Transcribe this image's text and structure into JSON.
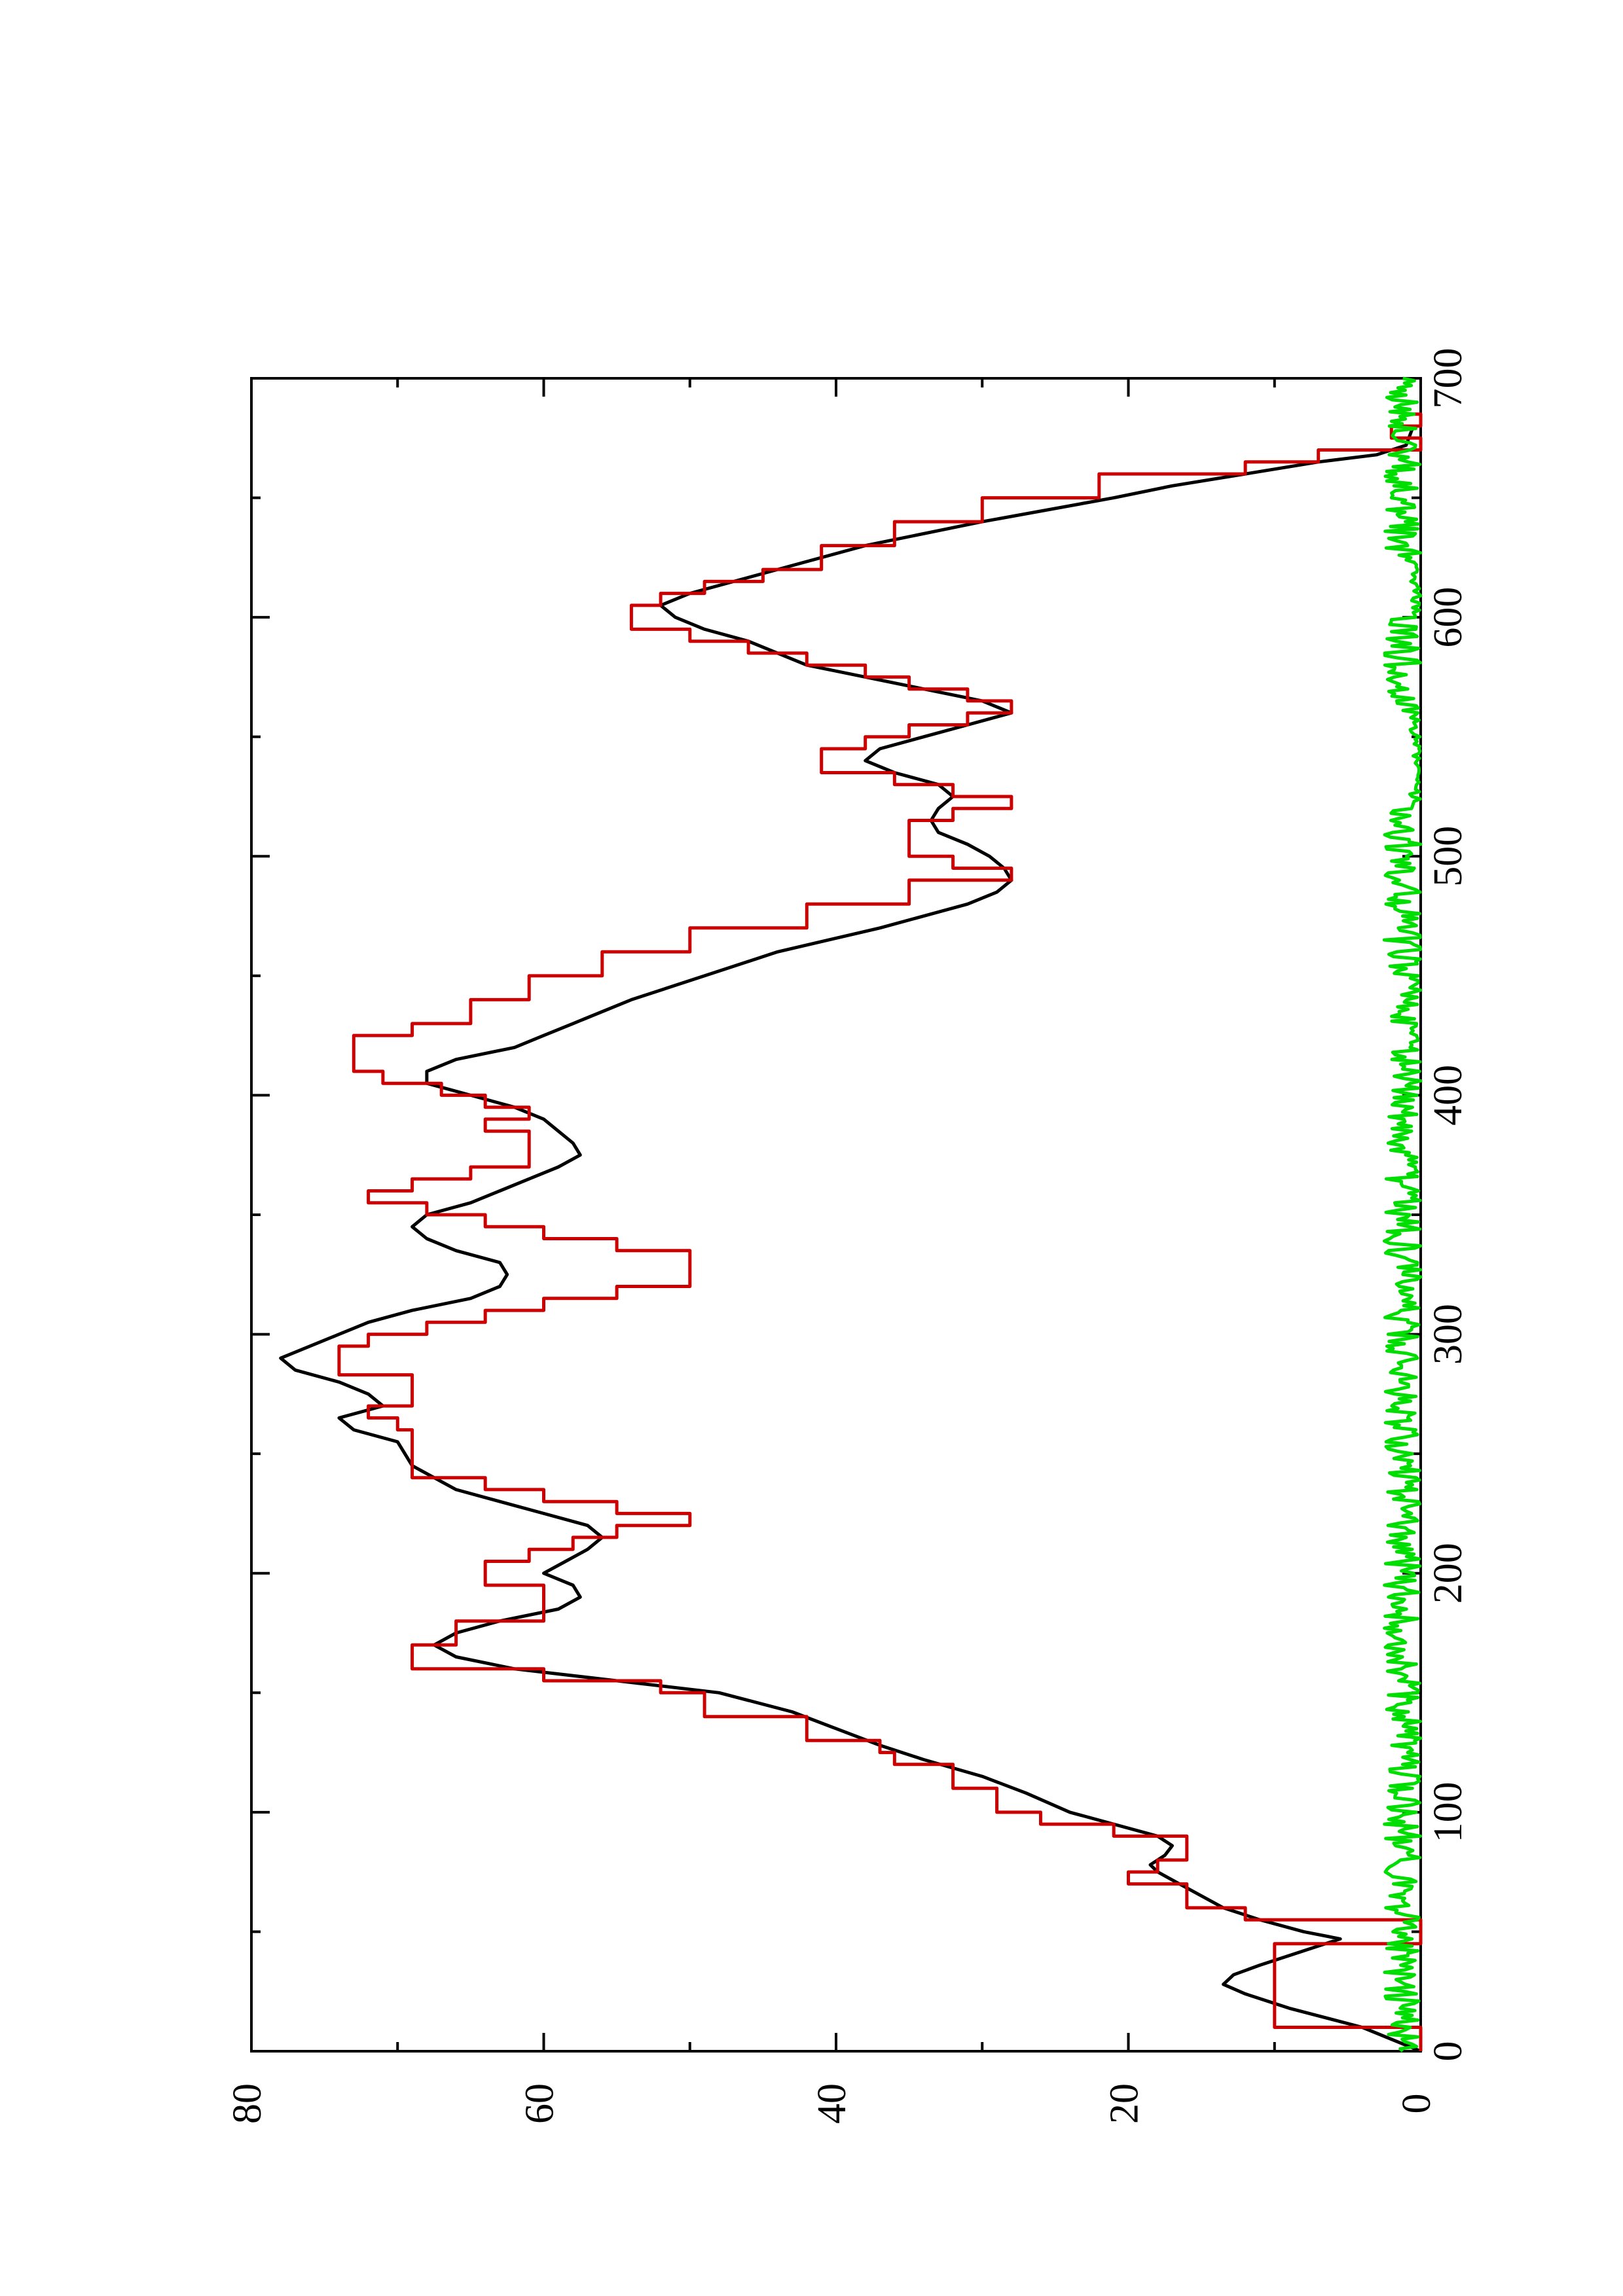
{
  "chart_data": {
    "type": "line",
    "orientation": "rotated-90-ccw",
    "title": "",
    "xlabel": "",
    "ylabel": "",
    "xlim": [
      0,
      700
    ],
    "ylim": [
      0,
      80
    ],
    "x_major_ticks": [
      0,
      100,
      200,
      300,
      400,
      500,
      600,
      700
    ],
    "x_minor_ticks": [
      50,
      150,
      250,
      350,
      450,
      550,
      650
    ],
    "y_major_ticks": [
      0,
      20,
      40,
      60,
      80
    ],
    "y_minor_ticks": [
      10,
      30,
      50,
      70
    ],
    "x_tick_labels": [
      "0",
      "100",
      "200",
      "300",
      "400",
      "500",
      "600",
      "700"
    ],
    "y_tick_labels": [
      "0",
      "20",
      "40",
      "60",
      "80"
    ],
    "grid": false,
    "legend": "none",
    "series": [
      {
        "color": "#000000",
        "style": "line",
        "points": [
          [
            0,
            0
          ],
          [
            10,
            4
          ],
          [
            18,
            9
          ],
          [
            24,
            12
          ],
          [
            28,
            13.5
          ],
          [
            32,
            12.8
          ],
          [
            36,
            11
          ],
          [
            40,
            9
          ],
          [
            44,
            7
          ],
          [
            47,
            5.5
          ],
          [
            50,
            8
          ],
          [
            55,
            11
          ],
          [
            60,
            13.5
          ],
          [
            65,
            15
          ],
          [
            70,
            16.5
          ],
          [
            75,
            18
          ],
          [
            78,
            18.5
          ],
          [
            82,
            17.5
          ],
          [
            86,
            17
          ],
          [
            90,
            18
          ],
          [
            95,
            21
          ],
          [
            100,
            24
          ],
          [
            108,
            27
          ],
          [
            115,
            30
          ],
          [
            122,
            34
          ],
          [
            128,
            37
          ],
          [
            135,
            40
          ],
          [
            142,
            43
          ],
          [
            150,
            48
          ],
          [
            155,
            55
          ],
          [
            160,
            62
          ],
          [
            165,
            66
          ],
          [
            170,
            67.5
          ],
          [
            175,
            66
          ],
          [
            180,
            63
          ],
          [
            185,
            59
          ],
          [
            190,
            57.5
          ],
          [
            195,
            58
          ],
          [
            200,
            60
          ],
          [
            205,
            58.5
          ],
          [
            210,
            57
          ],
          [
            215,
            56
          ],
          [
            220,
            57
          ],
          [
            225,
            60
          ],
          [
            235,
            66
          ],
          [
            245,
            69
          ],
          [
            255,
            70
          ],
          [
            260,
            73
          ],
          [
            265,
            74
          ],
          [
            270,
            71
          ],
          [
            275,
            72
          ],
          [
            280,
            74
          ],
          [
            285,
            77
          ],
          [
            290,
            78
          ],
          [
            295,
            76
          ],
          [
            300,
            74
          ],
          [
            305,
            72
          ],
          [
            310,
            69
          ],
          [
            315,
            65
          ],
          [
            320,
            63
          ],
          [
            325,
            62.5
          ],
          [
            330,
            63
          ],
          [
            335,
            66
          ],
          [
            340,
            68
          ],
          [
            345,
            69
          ],
          [
            350,
            68
          ],
          [
            355,
            65
          ],
          [
            360,
            63
          ],
          [
            365,
            61
          ],
          [
            370,
            59
          ],
          [
            375,
            57.5
          ],
          [
            380,
            58
          ],
          [
            385,
            59
          ],
          [
            390,
            60
          ],
          [
            395,
            62
          ],
          [
            400,
            65
          ],
          [
            405,
            68
          ],
          [
            410,
            68
          ],
          [
            415,
            66
          ],
          [
            420,
            62
          ],
          [
            425,
            60
          ],
          [
            430,
            58
          ],
          [
            440,
            54
          ],
          [
            450,
            49
          ],
          [
            460,
            44
          ],
          [
            470,
            37
          ],
          [
            480,
            31
          ],
          [
            485,
            29
          ],
          [
            490,
            28
          ],
          [
            495,
            28.5
          ],
          [
            500,
            29.5
          ],
          [
            505,
            31
          ],
          [
            510,
            33
          ],
          [
            515,
            33.5
          ],
          [
            520,
            33
          ],
          [
            525,
            32
          ],
          [
            530,
            33
          ],
          [
            535,
            36
          ],
          [
            540,
            38
          ],
          [
            545,
            37
          ],
          [
            550,
            34
          ],
          [
            555,
            31
          ],
          [
            560,
            28
          ],
          [
            565,
            30
          ],
          [
            570,
            34
          ],
          [
            575,
            38
          ],
          [
            580,
            42
          ],
          [
            585,
            44
          ],
          [
            590,
            46
          ],
          [
            595,
            49
          ],
          [
            600,
            51
          ],
          [
            605,
            52
          ],
          [
            610,
            50
          ],
          [
            615,
            47
          ],
          [
            620,
            44
          ],
          [
            630,
            38
          ],
          [
            640,
            30
          ],
          [
            650,
            21
          ],
          [
            655,
            17
          ],
          [
            660,
            12
          ],
          [
            665,
            7
          ],
          [
            668,
            3
          ],
          [
            672,
            1
          ],
          [
            680,
            0.5
          ]
        ]
      },
      {
        "color": "#cc0000",
        "style": "step",
        "points": [
          [
            0,
            0
          ],
          [
            10,
            10
          ],
          [
            40,
            10
          ],
          [
            45,
            0
          ],
          [
            55,
            12
          ],
          [
            60,
            16
          ],
          [
            70,
            20
          ],
          [
            75,
            18
          ],
          [
            80,
            16
          ],
          [
            85,
            16
          ],
          [
            90,
            21
          ],
          [
            95,
            26
          ],
          [
            100,
            29
          ],
          [
            110,
            32
          ],
          [
            120,
            36
          ],
          [
            125,
            37
          ],
          [
            130,
            42
          ],
          [
            140,
            49
          ],
          [
            150,
            52
          ],
          [
            155,
            60
          ],
          [
            160,
            69
          ],
          [
            165,
            69
          ],
          [
            170,
            66
          ],
          [
            180,
            60
          ],
          [
            190,
            60
          ],
          [
            195,
            64
          ],
          [
            200,
            64
          ],
          [
            205,
            61
          ],
          [
            210,
            58
          ],
          [
            215,
            55
          ],
          [
            220,
            50
          ],
          [
            225,
            55
          ],
          [
            230,
            60
          ],
          [
            235,
            64
          ],
          [
            240,
            69
          ],
          [
            250,
            69
          ],
          [
            260,
            70
          ],
          [
            265,
            72
          ],
          [
            270,
            69
          ],
          [
            280,
            69
          ],
          [
            283,
            74
          ],
          [
            290,
            74
          ],
          [
            295,
            72
          ],
          [
            300,
            68
          ],
          [
            305,
            64
          ],
          [
            310,
            60
          ],
          [
            315,
            55
          ],
          [
            320,
            50
          ],
          [
            330,
            50
          ],
          [
            335,
            55
          ],
          [
            340,
            60
          ],
          [
            345,
            64
          ],
          [
            350,
            68
          ],
          [
            355,
            72
          ],
          [
            360,
            69
          ],
          [
            365,
            65
          ],
          [
            370,
            61
          ],
          [
            380,
            61
          ],
          [
            385,
            64
          ],
          [
            390,
            61
          ],
          [
            395,
            64
          ],
          [
            400,
            67
          ],
          [
            405,
            71
          ],
          [
            410,
            73
          ],
          [
            420,
            73
          ],
          [
            425,
            69
          ],
          [
            430,
            65
          ],
          [
            440,
            61
          ],
          [
            450,
            56
          ],
          [
            460,
            50
          ],
          [
            470,
            42
          ],
          [
            480,
            35
          ],
          [
            490,
            28
          ],
          [
            495,
            32
          ],
          [
            500,
            35
          ],
          [
            505,
            35
          ],
          [
            510,
            35
          ],
          [
            515,
            32
          ],
          [
            520,
            28
          ],
          [
            525,
            32
          ],
          [
            530,
            36
          ],
          [
            535,
            41
          ],
          [
            540,
            41
          ],
          [
            545,
            38
          ],
          [
            550,
            35
          ],
          [
            555,
            31
          ],
          [
            560,
            28
          ],
          [
            565,
            31
          ],
          [
            570,
            35
          ],
          [
            575,
            38
          ],
          [
            580,
            42
          ],
          [
            585,
            46
          ],
          [
            590,
            50
          ],
          [
            595,
            54
          ],
          [
            600,
            54
          ],
          [
            605,
            52
          ],
          [
            610,
            49
          ],
          [
            615,
            45
          ],
          [
            620,
            41
          ],
          [
            630,
            36
          ],
          [
            640,
            30
          ],
          [
            650,
            22
          ],
          [
            660,
            12
          ],
          [
            665,
            7
          ],
          [
            670,
            0
          ],
          [
            675,
            2
          ],
          [
            680,
            0
          ],
          [
            685,
            1
          ]
        ]
      },
      {
        "color": "#00dd00",
        "style": "noise",
        "n_points": 700,
        "amplitude": 2.5,
        "seed": 7,
        "baseline_drop_ranges": [
          [
            420,
            430
          ],
          [
            445,
            450
          ],
          [
            520,
            560
          ],
          [
            600,
            620
          ]
        ]
      }
    ]
  }
}
